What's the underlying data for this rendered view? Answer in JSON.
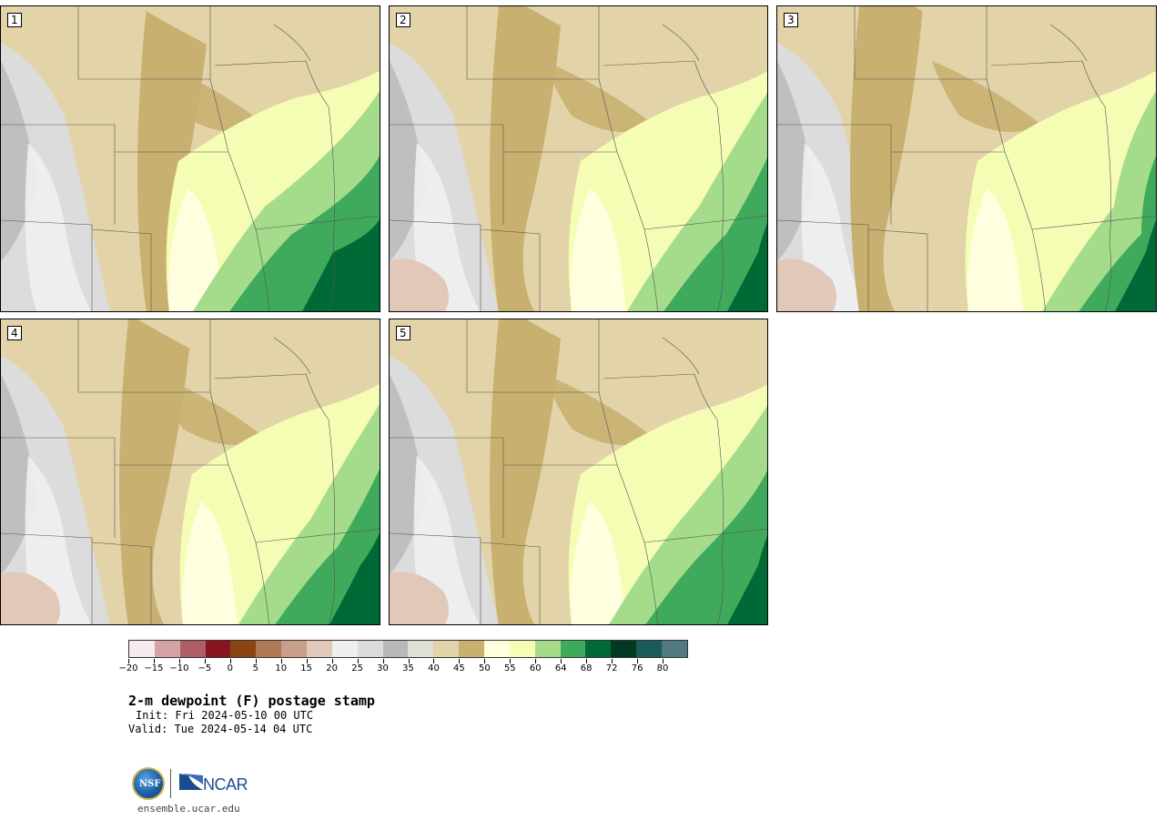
{
  "panels": [
    {
      "label": "1"
    },
    {
      "label": "2"
    },
    {
      "label": "3"
    },
    {
      "label": "4"
    },
    {
      "label": "5"
    }
  ],
  "colorbar": {
    "colors": [
      "#f6ebec",
      "#d6a2a6",
      "#ae5f66",
      "#87161f",
      "#8b4513",
      "#ae7a55",
      "#c8a08a",
      "#e1c8b8",
      "#efefef",
      "#dcdcdc",
      "#b8b8ba",
      "#dfdfd3",
      "#e2d3a8",
      "#c8b070",
      "#ffffe0",
      "#f5fcb4",
      "#a4dc8c",
      "#40aa5c",
      "#006a37",
      "#003a22",
      "#1a5a5a",
      "#4f7a80"
    ],
    "tick_labels": [
      "−20",
      "−15",
      "−10",
      "−5",
      "0",
      "5",
      "10",
      "15",
      "20",
      "25",
      "30",
      "35",
      "40",
      "45",
      "50",
      "55",
      "60",
      "64",
      "68",
      "72",
      "76",
      "80"
    ]
  },
  "title": "2-m dewpoint (F) postage stamp",
  "init": "Init: Fri 2024-05-10 00 UTC",
  "valid": "Valid: Tue 2024-05-14 04 UTC",
  "logo": {
    "nsf": "NSF",
    "ncar": "NCAR"
  },
  "url": "ensemble.ucar.edu"
}
